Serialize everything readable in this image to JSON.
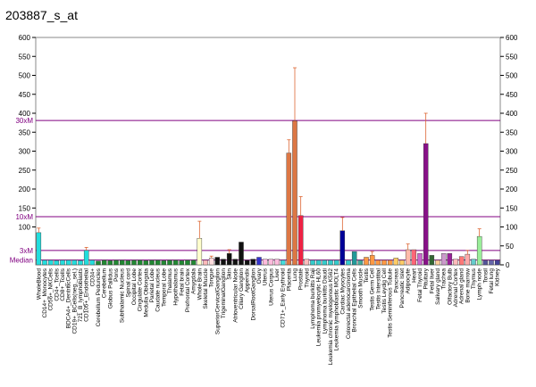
{
  "chart_data": {
    "type": "bar",
    "title": "203887_s_at",
    "categories": [
      "WholeBlood",
      "CD14+_Monocytes",
      "CD56+_NKCells",
      "CD4+_Tcells",
      "CD8+_Tcells",
      "BDCA4+_DentriticCells",
      "CD19+_BCells(neg._sel.)",
      "721_B_lymphoblasts",
      "CD105+_Endothelial",
      "CD34+",
      "Cerebellum Peduncles",
      "Cerebellum",
      "Globus Pallidus",
      "Pons",
      "Subthalamic Nucleus",
      "Spinal cord",
      "Occipital Lobe",
      "Cingulate Cortex",
      "Medulla Oblongata",
      "Parietal Lobe",
      "Caudate nucleus",
      "Temporal Lobe",
      "Thalamus",
      "Hypothalamus",
      "Fetal brain",
      "Prefrontal Cortex",
      "Amygdala",
      "Whole Brain",
      "Skeletal Muscle",
      "Tongue",
      "SuperiorCervicalGanglion",
      "TrigeminalGanglion",
      "Skin",
      "Atrioventricular Node",
      "Ciliary Ganglion",
      "Appendix",
      "DorsalRootGanglion",
      "Ovary",
      "Uterus",
      "Uterus Corpus",
      "Liver",
      "CD71+_Early Erythroid",
      "Placenta",
      "Lung",
      "Prostate",
      "Thyroid",
      "Lymphoma burkitts Raji",
      "Leukemia promyelocytic HL60",
      "Lymphoma burkitts Daudi",
      "Leukemia chronic myelogenous K562",
      "Leukemia lymphoblastic MOLT4",
      "Cardiac Myocytes",
      "Colorectal adenocarcinoma",
      "Bronchial Epithelial Cells",
      "Smooth Muscle",
      "Testis",
      "Testis Germ Cell",
      "Testis Interstitial",
      "Testis Leydig Cell",
      "Testis Seminiferous Tubule",
      "Pancreas",
      "Pancreatic Islet",
      "Adipocyte",
      "Heart",
      "Fetal Thyroid",
      "Pituitary",
      "Fetal liver",
      "Salivary gland",
      "Trachea",
      "Olfactory Bulb",
      "Adrenal Cortex",
      "Adrenal gland",
      "Bone marrow",
      "Thymus",
      "Lymph node",
      "Tonsil",
      "Fetal lung",
      "Kidney"
    ],
    "values": [
      85,
      12,
      12,
      11,
      12,
      12,
      12,
      11,
      38,
      12,
      10,
      12,
      11,
      12,
      12,
      11,
      12,
      12,
      11,
      12,
      12,
      11,
      12,
      12,
      11,
      12,
      12,
      70,
      12,
      18,
      20,
      15,
      30,
      15,
      60,
      12,
      15,
      20,
      15,
      15,
      15,
      12,
      295,
      380,
      130,
      15,
      12,
      12,
      12,
      12,
      12,
      90,
      12,
      35,
      12,
      20,
      25,
      12,
      12,
      12,
      18,
      12,
      40,
      40,
      30,
      320,
      25,
      12,
      30,
      30,
      15,
      22,
      28,
      15,
      75,
      12,
      12,
      12
    ],
    "errors": [
      12,
      null,
      null,
      null,
      null,
      null,
      null,
      null,
      8,
      null,
      null,
      null,
      null,
      null,
      null,
      null,
      null,
      null,
      null,
      null,
      null,
      null,
      null,
      null,
      null,
      null,
      null,
      45,
      null,
      5,
      null,
      null,
      10,
      null,
      null,
      null,
      null,
      null,
      null,
      null,
      null,
      null,
      35,
      140,
      50,
      null,
      null,
      null,
      null,
      null,
      null,
      35,
      null,
      null,
      null,
      null,
      10,
      null,
      null,
      null,
      null,
      null,
      15,
      null,
      null,
      80,
      null,
      null,
      null,
      null,
      null,
      null,
      10,
      null,
      20,
      null,
      null,
      null
    ],
    "colors": [
      "#22dddd",
      "#22dddd",
      "#22dddd",
      "#22dddd",
      "#22dddd",
      "#22dddd",
      "#22dddd",
      "#22dddd",
      "#22dddd",
      "#22dddd",
      "#228833",
      "#228833",
      "#228833",
      "#228833",
      "#228833",
      "#228833",
      "#228833",
      "#228833",
      "#228833",
      "#228833",
      "#228833",
      "#228833",
      "#228833",
      "#228833",
      "#228833",
      "#228833",
      "#228833",
      "#ffffcc",
      "#ffbbbb",
      "#ffdddd",
      "#111111",
      "#111111",
      "#111111",
      "#111111",
      "#111111",
      "#111111",
      "#111111",
      "#3333cc",
      "#ffbbdd",
      "#ffbbdd",
      "#ffbbdd",
      "#44dddd",
      "#dd7744",
      "#dd7744",
      "#ee2244",
      "#ffbbbb",
      "#33cccc",
      "#33cccc",
      "#33cccc",
      "#33cccc",
      "#33cccc",
      "#000099",
      "#33cccc",
      "#229999",
      "#44aa99",
      "#ff9944",
      "#ff9944",
      "#ff9944",
      "#ff9944",
      "#ff9944",
      "#ffcc66",
      "#ffcc66",
      "#ffbbaa",
      "#ff6677",
      "#cc66cc",
      "#881188",
      "#336633",
      "#ffcc99",
      "#cc99cc",
      "#992299",
      "#ffbbbb",
      "#ff7777",
      "#ffaaaa",
      "#66cccc",
      "#99ee99",
      "#555599",
      "#6666aa",
      "#444499"
    ],
    "ylim": [
      0,
      600
    ],
    "yticks": [
      100,
      150,
      200,
      250,
      300,
      350,
      400,
      450,
      500,
      550,
      600
    ],
    "y2lim": [
      0,
      600
    ],
    "y2ticks": [
      0,
      50,
      100,
      150,
      200,
      250,
      300,
      350,
      400,
      450,
      500,
      550,
      600
    ],
    "reference_lines": [
      {
        "label": "30xM",
        "value": 381
      },
      {
        "label": "10xM",
        "value": 127
      },
      {
        "label": "3xM",
        "value": 38
      },
      {
        "label": "Median",
        "value": 12.7
      }
    ]
  }
}
